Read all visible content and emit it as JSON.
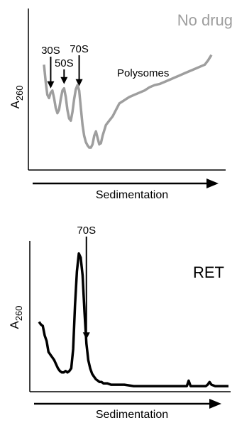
{
  "chart_data": [
    {
      "type": "line",
      "title": "No drug",
      "ylabel": "A",
      "ylabel_sub": "260",
      "xlabel": "Sedimentation",
      "series_color": "#9e9e9e",
      "x_range": [
        0,
        100
      ],
      "y_range": [
        0,
        100
      ],
      "annotations": [
        {
          "label": "30S",
          "x": 4
        },
        {
          "label": "50S",
          "x": 12
        },
        {
          "label": "70S",
          "x": 21
        }
      ],
      "annotation_text": "Polysomes",
      "series": [
        {
          "x": [
            0,
            1,
            2,
            3,
            4,
            5,
            6,
            7,
            8,
            9,
            10,
            11,
            12,
            13,
            14,
            15,
            16,
            17,
            18,
            19,
            20,
            21,
            22,
            23,
            24,
            25,
            26,
            27,
            28,
            29,
            30,
            31,
            32,
            33,
            34,
            35,
            37,
            39,
            41,
            43,
            45,
            47,
            49,
            51,
            54,
            57,
            60,
            63,
            66,
            69,
            72,
            75,
            78,
            81,
            84,
            87,
            90,
            93,
            96,
            98,
            100
          ],
          "y": [
            86,
            70,
            58,
            55,
            60,
            62,
            55,
            46,
            41,
            44,
            54,
            62,
            64,
            56,
            44,
            36,
            34,
            42,
            54,
            63,
            67,
            62,
            46,
            30,
            20,
            14,
            11,
            9,
            9,
            12,
            20,
            24,
            18,
            12,
            13,
            20,
            30,
            34,
            38,
            44,
            50,
            52,
            54,
            56,
            58,
            60,
            62,
            65,
            67,
            68,
            70,
            72,
            74,
            76,
            78,
            80,
            82,
            84,
            86,
            90,
            95
          ]
        }
      ]
    },
    {
      "type": "line",
      "title": "RET",
      "ylabel": "A",
      "ylabel_sub": "260",
      "xlabel": "Sedimentation",
      "series_color": "#000000",
      "x_range": [
        0,
        100
      ],
      "y_range": [
        0,
        100
      ],
      "annotations": [
        {
          "label": "70S",
          "x": 25
        }
      ],
      "series": [
        {
          "x": [
            0,
            1,
            2,
            3,
            4,
            5,
            6,
            7,
            8,
            9,
            10,
            11,
            12,
            13,
            14,
            15,
            16,
            17,
            18,
            19,
            20,
            21,
            22,
            23,
            24,
            25,
            26,
            27,
            28,
            29,
            30,
            31,
            32,
            33,
            34,
            35,
            36,
            38,
            40,
            42,
            45,
            50,
            55,
            60,
            65,
            70,
            75,
            78,
            79,
            80,
            81,
            85,
            88,
            89,
            90,
            91,
            93,
            95,
            98,
            100
          ],
          "y": [
            48,
            46,
            45,
            38,
            34,
            26,
            24,
            22,
            20,
            17,
            14,
            12,
            11,
            11,
            12,
            11,
            12,
            14,
            28,
            60,
            85,
            98,
            95,
            82,
            55,
            32,
            20,
            14,
            10,
            8,
            6,
            5,
            4,
            4,
            3,
            3,
            3,
            2,
            2,
            2,
            2,
            1,
            1,
            1,
            1,
            1,
            1,
            1,
            5,
            1,
            1,
            1,
            1,
            2,
            4,
            2,
            1,
            1,
            1,
            1
          ]
        }
      ]
    }
  ]
}
